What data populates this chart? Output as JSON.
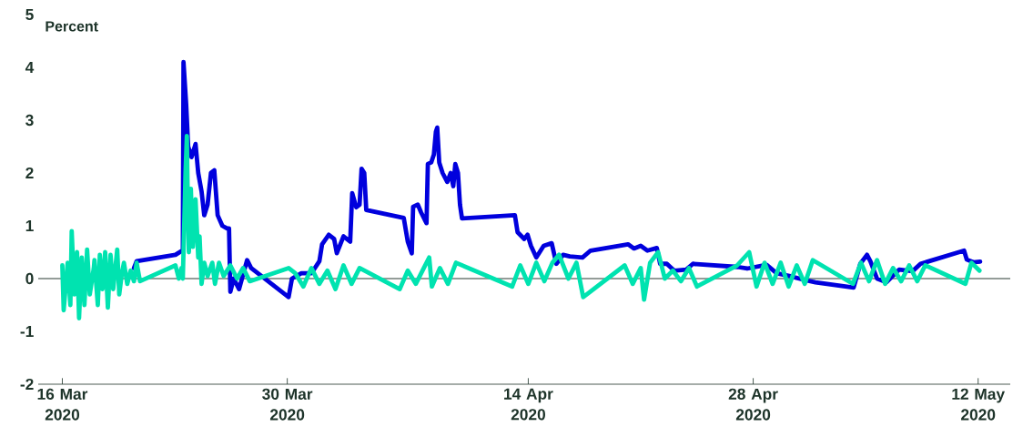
{
  "chart_data": {
    "type": "line",
    "ylabel": "Percent",
    "xlim": [
      "2020-03-14T12:00",
      "2020-05-14T00:00"
    ],
    "ylim": [
      -2,
      5
    ],
    "yticks": [
      -2,
      -1,
      0,
      1,
      2,
      3,
      4,
      5
    ],
    "xticks": [
      {
        "value": "2020-03-16",
        "label": "16 Mar 2020"
      },
      {
        "value": "2020-03-30",
        "label": "30 Mar 2020"
      },
      {
        "value": "2020-04-14",
        "label": "14 Apr 2020"
      },
      {
        "value": "2020-04-28",
        "label": "28 Apr 2020"
      },
      {
        "value": "2020-05-12",
        "label": "12 May 2020"
      }
    ],
    "ref_lines": [
      {
        "axis": "y",
        "value": 0,
        "color": "#2b3a33"
      }
    ],
    "series": [
      {
        "color": "#0000dd",
        "x": [
          "2020-03-20T11:00",
          "2020-03-20T15:00",
          "2020-03-23T01:00",
          "2020-03-23T11:00",
          "2020-03-23T12:00",
          "2020-03-23T13:00",
          "2020-03-23T17:00",
          "2020-03-23T20:00",
          "2020-03-24T01:00",
          "2020-03-24T07:00",
          "2020-03-24T11:00",
          "2020-03-24T16:00",
          "2020-03-24T20:00",
          "2020-03-25T01:00",
          "2020-03-25T06:00",
          "2020-03-25T11:00",
          "2020-03-25T16:00",
          "2020-03-25T23:00",
          "2020-03-26T06:00",
          "2020-03-26T09:00",
          "2020-03-26T11:00",
          "2020-03-26T16:00",
          "2020-03-27T00:00",
          "2020-03-27T12:00",
          "2020-03-27T18:00",
          "2020-03-30T02:00",
          "2020-03-30T07:00",
          "2020-03-30T21:00",
          "2020-03-31T12:00",
          "2020-04-01T00:00",
          "2020-04-01T04:00",
          "2020-04-01T14:00",
          "2020-04-01T22:00",
          "2020-04-02T02:00",
          "2020-04-02T12:00",
          "2020-04-02T22:00",
          "2020-04-03T01:00",
          "2020-04-03T07:00",
          "2020-04-03T12:00",
          "2020-04-03T15:00",
          "2020-04-03T19:00",
          "2020-04-03T22:00",
          "2020-04-06T06:00",
          "2020-04-06T12:00",
          "2020-04-06T18:00",
          "2020-04-06T20:00",
          "2020-04-07T03:00",
          "2020-04-07T08:00",
          "2020-04-07T16:00",
          "2020-04-07T18:00",
          "2020-04-07T23:00",
          "2020-04-08T03:00",
          "2020-04-08T06:00",
          "2020-04-08T08:00",
          "2020-04-08T11:00",
          "2020-04-08T16:00",
          "2020-04-08T23:00",
          "2020-04-09T04:00",
          "2020-04-09T08:00",
          "2020-04-09T11:00",
          "2020-04-09T15:00",
          "2020-04-09T18:00",
          "2020-04-09T21:00",
          "2020-04-13T04:00",
          "2020-04-13T08:00",
          "2020-04-13T18:00",
          "2020-04-13T23:00",
          "2020-04-14T04:00",
          "2020-04-14T12:00",
          "2020-04-14T23:00",
          "2020-04-15T11:00",
          "2020-04-15T18:00",
          "2020-04-16T04:00",
          "2020-04-16T14:00",
          "2020-04-17T09:00",
          "2020-04-17T21:00",
          "2020-04-20T05:00",
          "2020-04-20T14:00",
          "2020-04-21T00:00",
          "2020-04-21T10:00",
          "2020-04-22T00:00",
          "2020-04-22T05:00",
          "2020-04-22T15:00",
          "2020-04-23T02:00",
          "2020-04-23T20:00",
          "2020-04-24T06:00",
          "2020-04-27T01:00",
          "2020-04-27T15:00",
          "2020-04-28T20:00",
          "2020-04-29T11:00",
          "2020-04-30T06:00",
          "2020-05-01T06:00",
          "2020-05-01T21:00",
          "2020-05-04T06:00",
          "2020-05-04T16:00",
          "2020-05-05T02:00",
          "2020-05-05T07:00",
          "2020-05-05T17:00",
          "2020-05-06T07:00",
          "2020-05-07T02:00",
          "2020-05-07T22:00",
          "2020-05-08T10:00",
          "2020-05-11T03:00",
          "2020-05-11T07:00",
          "2020-05-11T17:00",
          "2020-05-12T03:00"
        ],
        "values": [
          0.2,
          0.33,
          0.45,
          0.53,
          0.55,
          4.1,
          3.3,
          2.5,
          2.3,
          2.55,
          2.0,
          1.65,
          1.2,
          1.4,
          2.0,
          2.05,
          1.2,
          1.0,
          0.95,
          0.95,
          -0.25,
          0.0,
          -0.2,
          0.35,
          0.2,
          -0.35,
          0.0,
          0.1,
          0.1,
          0.33,
          0.65,
          0.83,
          0.75,
          0.48,
          0.8,
          0.7,
          1.62,
          1.35,
          1.4,
          2.08,
          2.0,
          1.3,
          1.15,
          0.7,
          0.48,
          1.36,
          1.4,
          1.25,
          1.05,
          2.17,
          2.2,
          2.35,
          2.78,
          2.86,
          2.2,
          2.0,
          1.83,
          2.0,
          1.75,
          2.17,
          2.0,
          1.4,
          1.14,
          1.2,
          0.88,
          0.75,
          0.83,
          0.62,
          0.4,
          0.62,
          0.67,
          0.28,
          0.45,
          0.42,
          0.4,
          0.53,
          0.65,
          0.57,
          0.62,
          0.53,
          0.58,
          0.28,
          0.28,
          0.15,
          0.17,
          0.28,
          0.22,
          0.19,
          0.26,
          0.1,
          0.05,
          -0.03,
          -0.07,
          -0.17,
          0.28,
          0.45,
          0.33,
          0.0,
          -0.07,
          0.17,
          0.14,
          0.28,
          0.53,
          0.36,
          0.31,
          0.32
        ]
      },
      {
        "color": "#00e3b0",
        "x": [
          "2020-03-16T00:00",
          "2020-03-16T02:00",
          "2020-03-16T08:00",
          "2020-03-16T12:00",
          "2020-03-16T14:00",
          "2020-03-16T18:00",
          "2020-03-16T22:00",
          "2020-03-17T01:00",
          "2020-03-17T05:00",
          "2020-03-17T09:00",
          "2020-03-17T13:00",
          "2020-03-17T17:00",
          "2020-03-17T23:00",
          "2020-03-18T00:00",
          "2020-03-18T05:00",
          "2020-03-18T08:00",
          "2020-03-18T12:00",
          "2020-03-18T16:00",
          "2020-03-18T20:00",
          "2020-03-19T00:00",
          "2020-03-19T04:00",
          "2020-03-19T10:00",
          "2020-03-19T13:00",
          "2020-03-19T17:00",
          "2020-03-19T20:00",
          "2020-03-20T01:00",
          "2020-03-20T06:00",
          "2020-03-20T11:00",
          "2020-03-20T15:00",
          "2020-03-20T20:00",
          "2020-03-23T01:00",
          "2020-03-23T06:00",
          "2020-03-23T10:00",
          "2020-03-23T12:00",
          "2020-03-23T16:00",
          "2020-03-23T18:00",
          "2020-03-23T19:00",
          "2020-03-23T21:00",
          "2020-03-24T00:00",
          "2020-03-24T03:00",
          "2020-03-24T07:00",
          "2020-03-24T11:00",
          "2020-03-24T13:00",
          "2020-03-24T16:00",
          "2020-03-24T20:00",
          "2020-03-25T01:00",
          "2020-03-25T08:00",
          "2020-03-25T12:00",
          "2020-03-25T18:00",
          "2020-03-26T01:00",
          "2020-03-26T11:00",
          "2020-03-26T21:00",
          "2020-03-27T06:00",
          "2020-03-27T16:00",
          "2020-03-30T02:00",
          "2020-03-30T12:00",
          "2020-03-31T00:00",
          "2020-03-31T12:00",
          "2020-04-01T00:00",
          "2020-04-01T12:00",
          "2020-04-02T00:00",
          "2020-04-02T12:00",
          "2020-04-03T00:00",
          "2020-04-03T12:00",
          "2020-04-06T00:00",
          "2020-04-06T12:00",
          "2020-04-07T00:00",
          "2020-04-07T12:00",
          "2020-04-07T20:00",
          "2020-04-08T00:00",
          "2020-04-08T12:00",
          "2020-04-09T00:00",
          "2020-04-09T12:00",
          "2020-04-13T00:00",
          "2020-04-13T12:00",
          "2020-04-14T00:00",
          "2020-04-14T12:00",
          "2020-04-15T00:00",
          "2020-04-15T12:00",
          "2020-04-15T22:00",
          "2020-04-16T12:00",
          "2020-04-17T00:00",
          "2020-04-17T10:00",
          "2020-04-20T00:00",
          "2020-04-20T12:00",
          "2020-04-21T00:00",
          "2020-04-21T05:00",
          "2020-04-21T14:00",
          "2020-04-22T02:00",
          "2020-04-22T12:00",
          "2020-04-23T00:00",
          "2020-04-23T12:00",
          "2020-04-24T00:00",
          "2020-04-24T12:00",
          "2020-04-27T00:00",
          "2020-04-27T18:00",
          "2020-04-28T05:00",
          "2020-04-28T17:00",
          "2020-04-29T05:00",
          "2020-04-29T17:00",
          "2020-04-30T05:00",
          "2020-04-30T17:00",
          "2020-05-01T05:00",
          "2020-05-01T17:00",
          "2020-05-04T05:00",
          "2020-05-04T17:00",
          "2020-05-05T05:00",
          "2020-05-05T17:00",
          "2020-05-06T05:00",
          "2020-05-06T17:00",
          "2020-05-07T05:00",
          "2020-05-07T17:00",
          "2020-05-08T05:00",
          "2020-05-08T17:00",
          "2020-05-11T05:00",
          "2020-05-11T14:00",
          "2020-05-12T02:00"
        ],
        "values": [
          0.25,
          -0.6,
          0.3,
          -0.5,
          0.9,
          -0.3,
          0.5,
          -0.75,
          0.4,
          -0.5,
          0.55,
          -0.3,
          0.2,
          0.35,
          -0.5,
          0.45,
          -0.2,
          0.5,
          -0.55,
          0.45,
          -0.2,
          0.55,
          -0.3,
          0.1,
          0.3,
          -0.1,
          0.15,
          -0.05,
          0.3,
          -0.05,
          0.25,
          0.0,
          0.2,
          0.0,
          2.0,
          2.7,
          1.8,
          0.5,
          1.7,
          0.6,
          1.5,
          0.4,
          0.8,
          -0.1,
          0.3,
          0.05,
          0.3,
          -0.1,
          0.3,
          0.05,
          0.25,
          0.0,
          0.2,
          -0.05,
          0.2,
          0.1,
          -0.15,
          0.2,
          -0.1,
          0.15,
          -0.2,
          0.25,
          -0.1,
          0.2,
          -0.2,
          0.15,
          -0.1,
          0.2,
          0.4,
          -0.15,
          0.2,
          -0.1,
          0.3,
          -0.15,
          0.25,
          -0.1,
          0.3,
          -0.05,
          0.3,
          0.45,
          0.0,
          0.3,
          -0.35,
          0.25,
          -0.1,
          0.2,
          -0.4,
          0.3,
          0.5,
          0.0,
          0.15,
          -0.05,
          0.2,
          -0.15,
          0.25,
          0.5,
          -0.15,
          0.3,
          -0.1,
          0.3,
          -0.15,
          0.25,
          -0.1,
          0.35,
          -0.1,
          0.3,
          -0.05,
          0.35,
          -0.1,
          0.2,
          -0.05,
          0.25,
          -0.05,
          0.25,
          -0.1,
          0.3,
          0.15
        ]
      }
    ]
  }
}
